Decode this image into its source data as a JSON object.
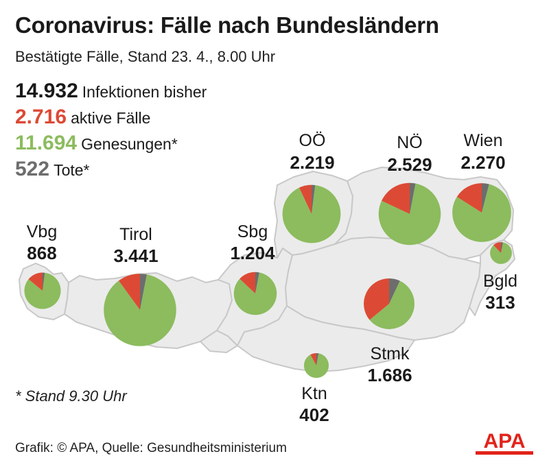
{
  "title": "Coronavirus: Fälle nach Bundesländern",
  "subtitle": "Bestätigte Fälle, Stand 23. 4., 8.00 Uhr",
  "stats": [
    {
      "value": "14.932",
      "label": "Infektionen bisher",
      "color": "#1a1a1a"
    },
    {
      "value": "2.716",
      "label": "aktive Fälle",
      "color": "#dc4a35"
    },
    {
      "value": "11.694",
      "label": "Genesungen*",
      "color": "#8cbc5e"
    },
    {
      "value": "522",
      "label": "Tote*",
      "color": "#6d6d6d"
    }
  ],
  "footnote": "* Stand 9.30 Uhr",
  "credit": "Grafik: © APA, Quelle: Gesundheitsministerium",
  "logo_text": "APA",
  "colors": {
    "active": "#dc4a35",
    "recovered": "#8cbc5e",
    "deaths": "#6d6d6d",
    "map_fill": "#ebebeb",
    "map_border": "#c8c8c8",
    "logo_red": "#e2231a"
  },
  "regions": [
    {
      "id": "vbg",
      "name": "Vbg",
      "total": "868",
      "total_num": 868,
      "active_share": 0.14,
      "death_share": 0.02
    },
    {
      "id": "tirol",
      "name": "Tirol",
      "total": "3.441",
      "total_num": 3441,
      "active_share": 0.1,
      "death_share": 0.03
    },
    {
      "id": "sbg",
      "name": "Sbg",
      "total": "1.204",
      "total_num": 1204,
      "active_share": 0.13,
      "death_share": 0.03
    },
    {
      "id": "ooe",
      "name": "OÖ",
      "total": "2.219",
      "total_num": 2219,
      "active_share": 0.07,
      "death_share": 0.02
    },
    {
      "id": "noe",
      "name": "NÖ",
      "total": "2.529",
      "total_num": 2529,
      "active_share": 0.18,
      "death_share": 0.03
    },
    {
      "id": "wien",
      "name": "Wien",
      "total": "2.270",
      "total_num": 2270,
      "active_share": 0.16,
      "death_share": 0.04
    },
    {
      "id": "bgld",
      "name": "Bgld",
      "total": "313",
      "total_num": 313,
      "active_share": 0.12,
      "death_share": 0.03
    },
    {
      "id": "stmk",
      "name": "Stmk",
      "total": "1.686",
      "total_num": 1686,
      "active_share": 0.36,
      "death_share": 0.07
    },
    {
      "id": "ktn",
      "name": "Ktn",
      "total": "402",
      "total_num": 402,
      "active_share": 0.08,
      "death_share": 0.03
    }
  ]
}
